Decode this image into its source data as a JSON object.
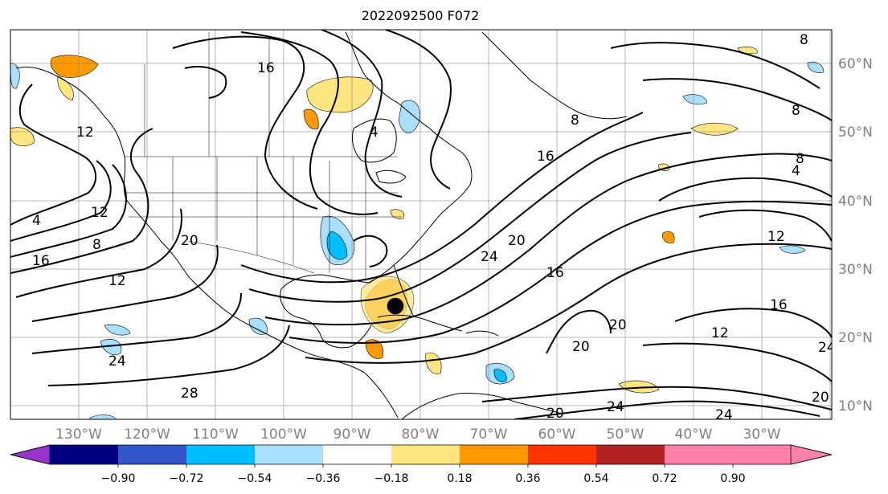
{
  "title": "2022092500 F072",
  "map": {
    "lon_range": [
      -137,
      -16
    ],
    "lat_range": [
      8,
      65
    ],
    "grid_lons": [
      -130,
      -120,
      -110,
      -100,
      -90,
      -80,
      -70,
      -60,
      -50,
      -40,
      -30,
      -20
    ],
    "grid_lats": [
      10,
      20,
      30,
      40,
      50,
      60
    ],
    "lon_labels": [
      "130°W",
      "120°W",
      "110°W",
      "100°W",
      "90°W",
      "80°W",
      "70°W",
      "60°W",
      "50°W",
      "40°W",
      "30°W"
    ],
    "lat_labels": [
      "10°N",
      "20°N",
      "30°N",
      "40°N",
      "50°N",
      "60°N"
    ],
    "contour_labels": [
      "4",
      "8",
      "12",
      "16",
      "20",
      "24",
      "28"
    ],
    "colors": {
      "contour": "#000000",
      "grid": "#808080",
      "land": "#000000",
      "label": "#808080"
    }
  },
  "colorbar": {
    "colors": [
      "#9933cc",
      "#000080",
      "#3355cc",
      "#00bfff",
      "#aadfff",
      "#ffffff",
      "#ffe680",
      "#ff9900",
      "#ff3300",
      "#b22222",
      "#ff80aa"
    ],
    "ticks": [
      "−0.90",
      "−0.72",
      "−0.54",
      "−0.36",
      "−0.18",
      "0.18",
      "0.36",
      "0.54",
      "0.72",
      "0.90"
    ]
  }
}
